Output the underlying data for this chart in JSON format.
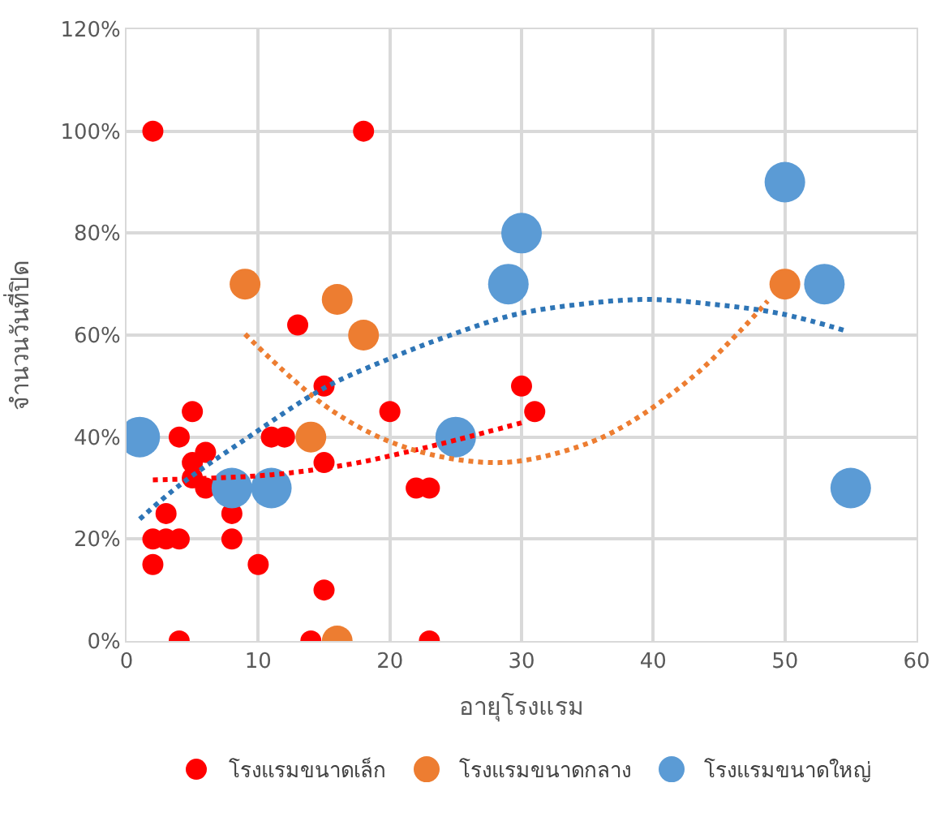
{
  "chart_data": {
    "type": "scatter",
    "xlabel": "อายุโรงแรม",
    "ylabel": "จำนวนวันที่ปิด",
    "xlim": [
      0,
      60
    ],
    "xticks": [
      0,
      10,
      20,
      30,
      40,
      50,
      60
    ],
    "ylim": [
      0,
      120
    ],
    "yticks": [
      {
        "value": 0,
        "label": "0%"
      },
      {
        "value": 20,
        "label": "20%"
      },
      {
        "value": 40,
        "label": "40%"
      },
      {
        "value": 60,
        "label": "60%"
      },
      {
        "value": 80,
        "label": "80%"
      },
      {
        "value": 100,
        "label": "100%"
      },
      {
        "value": 120,
        "label": "120%"
      }
    ],
    "grid": true,
    "legend": "bottom",
    "marker": "circle",
    "series": [
      {
        "name": "โรงแรมขนาดเล็ก",
        "color": "#ff0000",
        "x": [
          2,
          18,
          13,
          20,
          5,
          4,
          11,
          12,
          15,
          30,
          31,
          6,
          5,
          5,
          6,
          15,
          22,
          23,
          3,
          2,
          3,
          4,
          8,
          8,
          2,
          10,
          15,
          4,
          14,
          23
        ],
        "values": [
          100,
          100,
          62,
          45,
          45,
          40,
          40,
          40,
          50,
          50,
          45,
          37,
          35,
          32,
          30,
          35,
          30,
          30,
          25,
          20,
          20,
          20,
          25,
          20,
          15,
          15,
          10,
          0,
          0,
          0
        ]
      },
      {
        "name": "โรงแรมขนาดกลาง",
        "color": "#ed7d31",
        "x": [
          9,
          16,
          18,
          14,
          16,
          50
        ],
        "values": [
          70,
          67,
          60,
          40,
          0,
          70
        ]
      },
      {
        "name": "โรงแรมขนาดใหญ่",
        "color": "#5b9bd5",
        "x": [
          1,
          8,
          11,
          25,
          29,
          30,
          50,
          53,
          55
        ],
        "values": [
          40,
          30,
          30,
          40,
          70,
          80,
          90,
          70,
          30
        ]
      },
      {
        "type": "line",
        "color": "#ff0000",
        "line_style": "dotted",
        "marker": "none",
        "x": [
          2,
          11,
          17,
          21,
          25,
          30
        ],
        "values": [
          31.6,
          32.6,
          34.7,
          36.9,
          39.4,
          42.8
        ]
      },
      {
        "type": "line",
        "color": "#ed7d31",
        "line_style": "dotted",
        "marker": "none",
        "x": [
          9,
          15.6,
          21.4,
          28.4,
          34.3,
          38,
          43,
          46.6,
          48.7
        ],
        "values": [
          60.2,
          45.2,
          37.8,
          35,
          38.1,
          42.5,
          51.8,
          60.8,
          66.7
        ]
      },
      {
        "type": "line",
        "color": "#2e75b6",
        "line_style": "dotted",
        "marker": "none",
        "x": [
          1,
          4.1,
          9.1,
          15,
          19.8,
          24.4,
          29.3,
          34.3,
          39.5,
          44.7,
          49.7,
          54.7
        ],
        "values": [
          23.9,
          30.7,
          39.7,
          49.6,
          55.2,
          59.8,
          63.9,
          66,
          67,
          66,
          64.2,
          60.8
        ]
      }
    ]
  }
}
